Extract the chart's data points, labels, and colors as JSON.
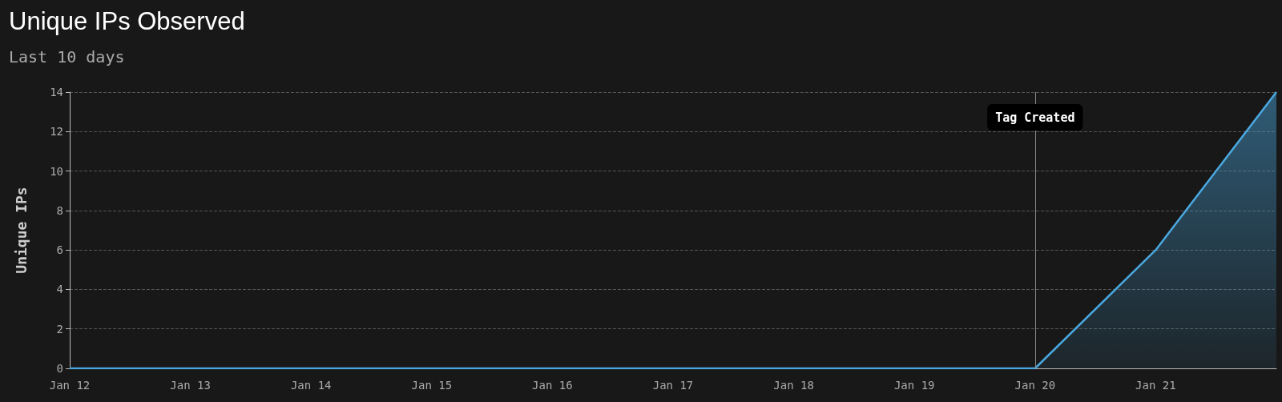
{
  "chart_data": {
    "type": "area",
    "title": "Unique IPs Observed",
    "subtitle": "Last 10 days",
    "ylabel": "Unique IPs",
    "x": [
      "--01-12",
      "--01-13",
      "--01-14",
      "--01-15",
      "--01-16",
      "--01-17",
      "--01-18",
      "--01-19",
      "--01-20",
      "--01-21",
      "--01-22"
    ],
    "series": [
      {
        "color": "#4aa8e0",
        "values": [
          0,
          0,
          0,
          0,
          0,
          0,
          0,
          0,
          0,
          6,
          14
        ]
      }
    ],
    "xlim": [
      "--01-12",
      "--01-22"
    ],
    "xticks": [
      {
        "value": "--01-12",
        "label": "Jan 12"
      },
      {
        "value": "--01-13",
        "label": "Jan 13"
      },
      {
        "value": "--01-14",
        "label": "Jan 14"
      },
      {
        "value": "--01-15",
        "label": "Jan 15"
      },
      {
        "value": "--01-16",
        "label": "Jan 16"
      },
      {
        "value": "--01-17",
        "label": "Jan 17"
      },
      {
        "value": "--01-18",
        "label": "Jan 18"
      },
      {
        "value": "--01-19",
        "label": "Jan 19"
      },
      {
        "value": "--01-20",
        "label": "Jan 20"
      },
      {
        "value": "--01-21",
        "label": "Jan 21"
      }
    ],
    "ylim": [
      0,
      14
    ],
    "yticks": [
      0,
      2,
      4,
      6,
      8,
      10,
      12,
      14
    ],
    "ref_lines": [
      {
        "axis": "x",
        "value": "--01-20",
        "label": "Tag Created",
        "color": "#888888"
      }
    ],
    "grid": "y",
    "marker": "none",
    "line_style": "solid"
  }
}
